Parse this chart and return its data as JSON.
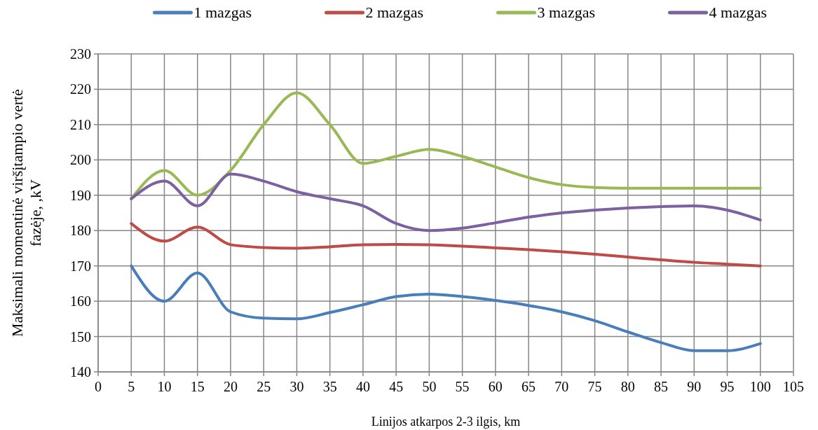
{
  "chart_data": {
    "type": "line",
    "xlabel": "Linijos atkarpos 2-3 ilgis, km",
    "ylabel": "Maksimali  momentinė viršįtampio vertė fazėje, ,kV",
    "x": [
      5,
      10,
      15,
      20,
      25,
      30,
      35,
      40,
      45,
      50,
      55,
      60,
      65,
      70,
      75,
      80,
      85,
      90,
      95,
      100
    ],
    "series": [
      {
        "name": "1 mazgas",
        "color": "#4a7ebb",
        "values": [
          170,
          160,
          168,
          157,
          155.2,
          155,
          156.8,
          159,
          161.3,
          162,
          161.3,
          160.2,
          158.8,
          157,
          154.5,
          151.3,
          148.3,
          146,
          146,
          148
        ]
      },
      {
        "name": "2 mazgas",
        "color": "#be4b48",
        "values": [
          182,
          177,
          181,
          176,
          175.2,
          175,
          175.4,
          176,
          176.1,
          176,
          175.6,
          175.1,
          174.6,
          174,
          173.3,
          172.5,
          171.7,
          171,
          170.5,
          170
        ]
      },
      {
        "name": "3 mazgas",
        "color": "#98b954",
        "values": [
          189,
          197,
          190,
          197,
          210,
          219,
          210,
          199,
          201,
          203,
          201,
          198,
          195,
          193,
          192.2,
          192,
          192,
          192,
          192,
          192
        ]
      },
      {
        "name": "4 mazgas",
        "color": "#7d60a0",
        "values": [
          189,
          194,
          187,
          196,
          194,
          191,
          189,
          187,
          182,
          180,
          180.7,
          182.2,
          183.8,
          185,
          185.8,
          186.4,
          186.8,
          187,
          185.8,
          183
        ]
      }
    ],
    "xlim": [
      0,
      105
    ],
    "xticks": [
      0,
      5,
      10,
      15,
      20,
      25,
      30,
      35,
      40,
      45,
      50,
      55,
      60,
      65,
      70,
      75,
      80,
      85,
      90,
      95,
      100,
      105
    ],
    "ylim": [
      140,
      230
    ],
    "yticks": [
      140,
      150,
      160,
      170,
      180,
      190,
      200,
      210,
      220,
      230
    ],
    "grid": true,
    "legend": "top",
    "marker": "none",
    "line_style": "solid"
  }
}
